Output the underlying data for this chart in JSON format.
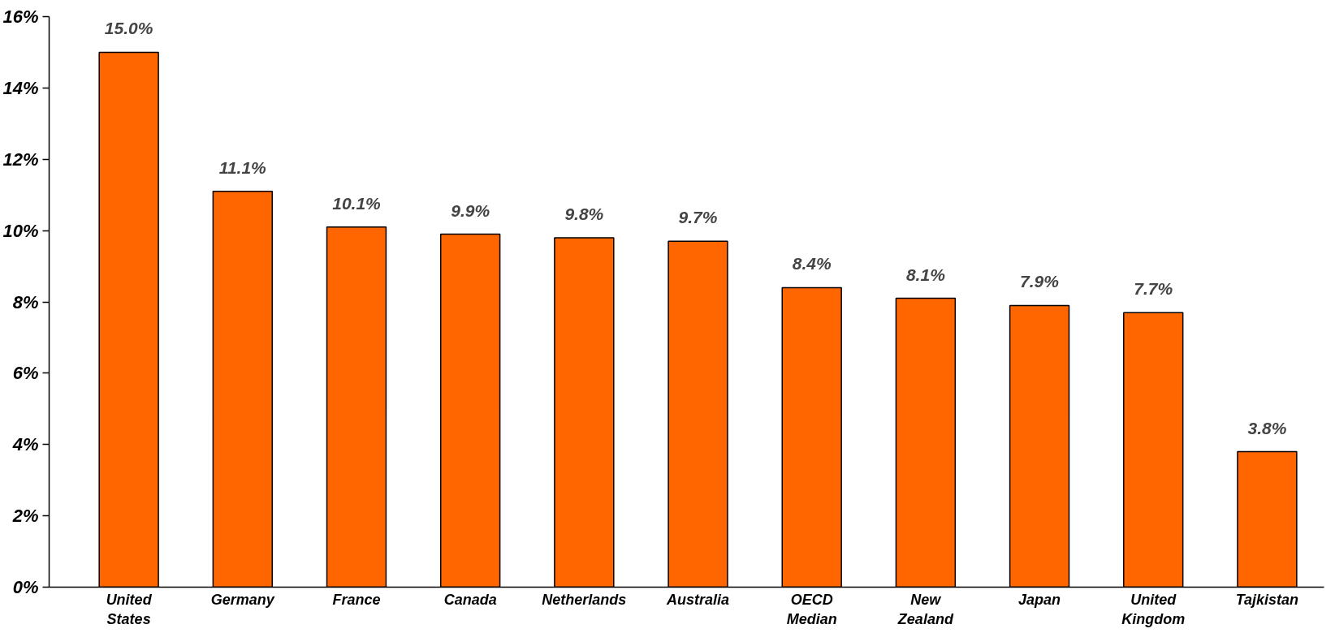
{
  "chart_data": {
    "type": "bar",
    "categories": [
      "United States",
      "Germany",
      "France",
      "Canada",
      "Netherlands",
      "Australia",
      "OECD Median",
      "New Zealand",
      "Japan",
      "United Kingdom",
      "Tajkistan"
    ],
    "values": [
      15.0,
      11.1,
      10.1,
      9.9,
      9.8,
      9.7,
      8.4,
      8.1,
      7.9,
      7.7,
      3.8
    ],
    "value_labels": [
      "15.0%",
      "11.1%",
      "10.1%",
      "9.9%",
      "9.8%",
      "9.7%",
      "8.4%",
      "8.1%",
      "7.9%",
      "7.7%",
      "3.8%"
    ],
    "color": "#ff6600",
    "ylim": [
      0,
      16
    ],
    "yticks": [
      {
        "value": 0,
        "label": "0%"
      },
      {
        "value": 2,
        "label": "2%"
      },
      {
        "value": 4,
        "label": "4%"
      },
      {
        "value": 6,
        "label": "6%"
      },
      {
        "value": 8,
        "label": "8%"
      },
      {
        "value": 10,
        "label": "10%"
      },
      {
        "value": 12,
        "label": "12%"
      },
      {
        "value": 14,
        "label": "14%"
      },
      {
        "value": 16,
        "label": "16%"
      }
    ],
    "grid": false
  }
}
